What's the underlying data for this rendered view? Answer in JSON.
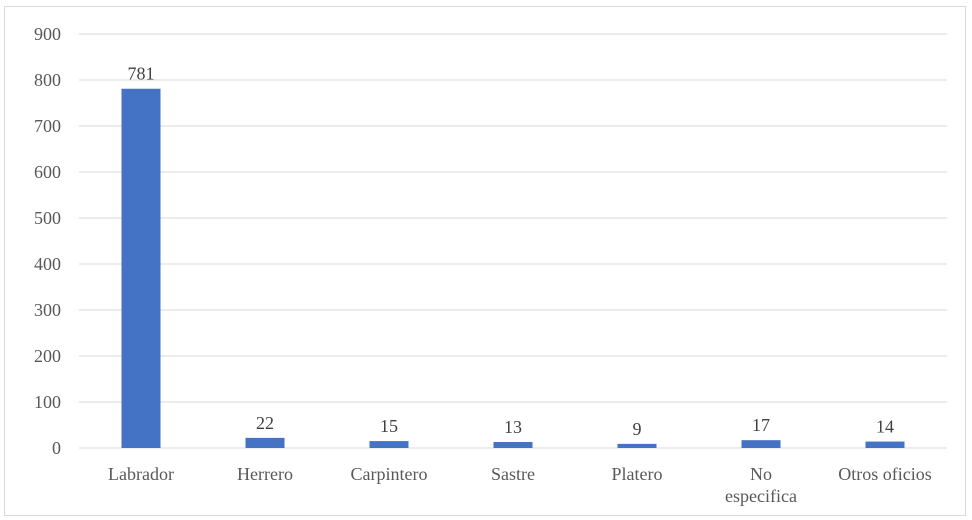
{
  "chart_data": {
    "type": "bar",
    "categories": [
      [
        "Labrador"
      ],
      [
        "Herrero"
      ],
      [
        "Carpintero"
      ],
      [
        "Sastre"
      ],
      [
        "Platero"
      ],
      [
        "No",
        "especifica"
      ],
      [
        "Otros oficios"
      ]
    ],
    "values": [
      781,
      22,
      15,
      13,
      9,
      17,
      14
    ],
    "data_labels": [
      "781",
      "22",
      "15",
      "13",
      "9",
      "17",
      "14"
    ],
    "title": "",
    "xlabel": "",
    "ylabel": "",
    "ylim": [
      0,
      900
    ],
    "yticks": [
      0,
      100,
      200,
      300,
      400,
      500,
      600,
      700,
      800,
      900
    ],
    "grid": true,
    "legend": "none",
    "bar_color": "#4472c4",
    "grid_color": "#d9d9d9"
  }
}
